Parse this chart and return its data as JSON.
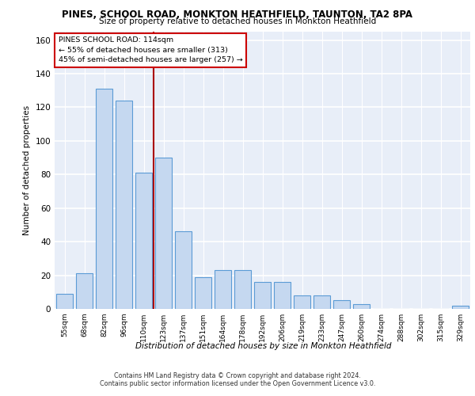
{
  "title": "PINES, SCHOOL ROAD, MONKTON HEATHFIELD, TAUNTON, TA2 8PA",
  "subtitle": "Size of property relative to detached houses in Monkton Heathfield",
  "xlabel": "Distribution of detached houses by size in Monkton Heathfield",
  "ylabel": "Number of detached properties",
  "bar_labels": [
    "55sqm",
    "68sqm",
    "82sqm",
    "96sqm",
    "110sqm",
    "123sqm",
    "137sqm",
    "151sqm",
    "164sqm",
    "178sqm",
    "192sqm",
    "206sqm",
    "219sqm",
    "233sqm",
    "247sqm",
    "260sqm",
    "274sqm",
    "288sqm",
    "302sqm",
    "315sqm",
    "329sqm"
  ],
  "bar_values": [
    9,
    21,
    131,
    124,
    81,
    90,
    46,
    19,
    23,
    23,
    16,
    16,
    8,
    8,
    5,
    3,
    0,
    0,
    0,
    0,
    2
  ],
  "bar_color": "#c5d8f0",
  "bar_edge_color": "#5b9bd5",
  "vline_x": 4.5,
  "vline_color": "#aa0000",
  "annotation_text": "PINES SCHOOL ROAD: 114sqm\n← 55% of detached houses are smaller (313)\n45% of semi-detached houses are larger (257) →",
  "ylim": [
    0,
    165
  ],
  "yticks": [
    0,
    20,
    40,
    60,
    80,
    100,
    120,
    140,
    160
  ],
  "bg_color": "#e8eef8",
  "grid_color": "#ffffff",
  "footer_line1": "Contains HM Land Registry data © Crown copyright and database right 2024.",
  "footer_line2": "Contains public sector information licensed under the Open Government Licence v3.0."
}
